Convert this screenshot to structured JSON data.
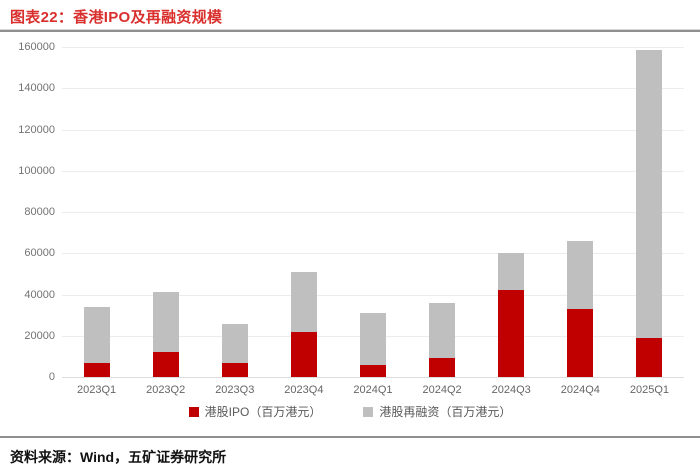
{
  "header": {
    "title": "图表22：香港IPO及再融资规模"
  },
  "footer": {
    "source": "资料来源：Wind，五矿证券研究所"
  },
  "colors": {
    "title_red": "#D9302E",
    "ipo_red": "#C00000",
    "refi_gray": "#BFBFBF",
    "gridline": "#ECECEC",
    "axis_text": "#737373",
    "divider": "#8F8F8F"
  },
  "chart_data": {
    "type": "bar",
    "stacked": true,
    "title": "香港IPO及再融资规模",
    "categories": [
      "2023Q1",
      "2023Q2",
      "2023Q3",
      "2023Q4",
      "2024Q1",
      "2024Q2",
      "2024Q3",
      "2024Q4",
      "2025Q1"
    ],
    "series": [
      {
        "name": "港股IPO（百万港元）",
        "color": "#C00000",
        "values": [
          7000,
          12000,
          7000,
          22000,
          6000,
          9000,
          42000,
          33000,
          19000
        ]
      },
      {
        "name": "港股再融资（百万港元）",
        "color": "#BFBFBF",
        "values": [
          27000,
          29000,
          18500,
          29000,
          25000,
          27000,
          18000,
          33000,
          139500
        ]
      }
    ],
    "xlabel": "",
    "ylabel": "",
    "ylim": [
      0,
      160000
    ],
    "yticks": [
      0,
      20000,
      40000,
      60000,
      80000,
      100000,
      120000,
      140000,
      160000
    ],
    "grid": true,
    "legend_position": "bottom"
  }
}
